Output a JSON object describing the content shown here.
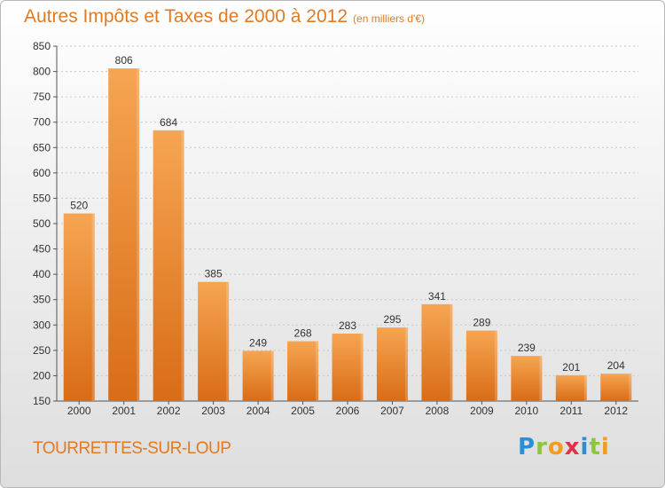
{
  "chart": {
    "title": "Autres Impôts et Taxes de 2000 à 2012",
    "subtitle": "(en milliers d'€)",
    "city": "TOURRETTES-SUR-LOUP",
    "logo": "Proxiti"
  },
  "colors": {
    "bar_top": "#f6a552",
    "bar_bottom": "#d96c16",
    "accent": "#e07b24",
    "axis": "#555555",
    "grid": "#c8c8c8"
  },
  "chart_data": {
    "type": "bar",
    "categories": [
      "2000",
      "2001",
      "2002",
      "2003",
      "2004",
      "2005",
      "2006",
      "2007",
      "2008",
      "2009",
      "2010",
      "2011",
      "2012"
    ],
    "values": [
      520,
      806,
      684,
      385,
      249,
      268,
      283,
      295,
      341,
      289,
      239,
      201,
      204
    ],
    "title": "Autres Impôts et Taxes de 2000 à 2012",
    "subtitle": "(en milliers d'€)",
    "ylim": [
      150,
      850
    ],
    "yticks": [
      150,
      200,
      250,
      300,
      350,
      400,
      450,
      500,
      550,
      600,
      650,
      700,
      750,
      800,
      850
    ],
    "grid": true,
    "legend": "none"
  }
}
